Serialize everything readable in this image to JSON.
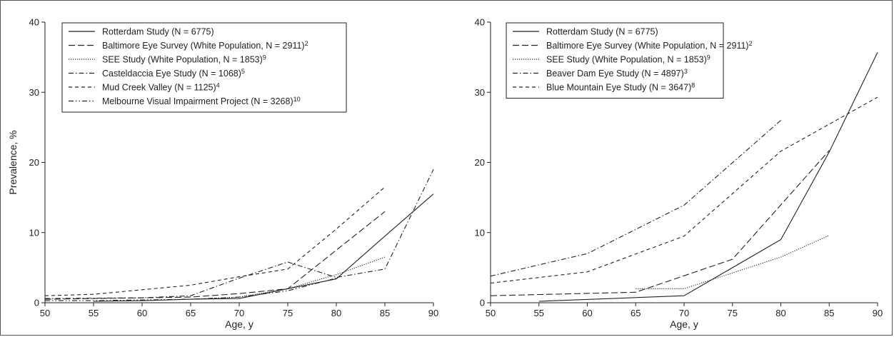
{
  "chart_data": [
    {
      "type": "line",
      "xlabel": "Age, y",
      "ylabel": "Prevalence, %",
      "xlim": [
        50,
        90
      ],
      "ylim": [
        0,
        40
      ],
      "xticks": [
        "50",
        "55",
        "60",
        "65",
        "70",
        "75",
        "80",
        "85",
        "90"
      ],
      "yticks": [
        "0",
        "10",
        "20",
        "30",
        "40"
      ],
      "legend_position": "top-left",
      "series": [
        {
          "name": "Rotterdam Study (N = 6775)",
          "sup": "",
          "dash": "solid",
          "x": [
            55,
            60,
            65,
            70,
            75,
            80,
            85,
            90
          ],
          "y": [
            0.2,
            0.3,
            0.5,
            0.6,
            2.0,
            3.4,
            9.5,
            15.5
          ]
        },
        {
          "name": "Baltimore Eye Survey (White Population, N = 2911)",
          "sup": "2",
          "dash": "longdash",
          "x": [
            50,
            65,
            70,
            75,
            80,
            85
          ],
          "y": [
            0.5,
            0.8,
            1.3,
            2.0,
            7.5,
            13.0
          ]
        },
        {
          "name": "SEE Study (White Population, N = 1853)",
          "sup": "9",
          "dash": "dotted",
          "x": [
            65,
            70,
            75,
            80,
            85
          ],
          "y": [
            0.5,
            0.8,
            2.0,
            4.0,
            6.5
          ]
        },
        {
          "name": "Casteldaccia Eye Study (N = 1068)",
          "sup": "5",
          "dash": "dashdot",
          "x": [
            50,
            60,
            65,
            70,
            75,
            80,
            85,
            90
          ],
          "y": [
            0.6,
            0.7,
            1.0,
            3.5,
            5.8,
            3.6,
            4.8,
            19.0
          ]
        },
        {
          "name": "Mud Creek Valley (N = 1125)",
          "sup": "4",
          "dash": "dashed",
          "x": [
            50,
            55,
            65,
            70,
            75,
            80,
            85
          ],
          "y": [
            1.0,
            1.2,
            2.5,
            3.7,
            4.8,
            10.5,
            16.5
          ]
        },
        {
          "name": "Melbourne Visual Impairment Project (N = 3268)",
          "sup": "10",
          "dash": "dashdotdot",
          "x": [
            50,
            55,
            65,
            70,
            75,
            80
          ],
          "y": [
            0.3,
            0.3,
            0.5,
            0.8,
            1.7,
            3.5
          ]
        }
      ]
    },
    {
      "type": "line",
      "xlabel": "Age, y",
      "ylabel": "",
      "xlim": [
        50,
        90
      ],
      "ylim": [
        0,
        40
      ],
      "xticks": [
        "50",
        "55",
        "60",
        "65",
        "70",
        "75",
        "80",
        "85",
        "90"
      ],
      "yticks": [
        "0",
        "10",
        "20",
        "30",
        "40"
      ],
      "legend_position": "top-left",
      "series": [
        {
          "name": "Rotterdam Study (N = 6775)",
          "sup": "",
          "dash": "solid",
          "x": [
            55,
            70,
            80,
            85,
            90
          ],
          "y": [
            0.2,
            1.0,
            9.0,
            21.5,
            35.7
          ]
        },
        {
          "name": "Baltimore Eye Survey (White Population, N = 2911)",
          "sup": "2",
          "dash": "longdash",
          "x": [
            50,
            65,
            75,
            85
          ],
          "y": [
            1.0,
            1.5,
            6.2,
            21.7
          ]
        },
        {
          "name": "SEE Study (White Population, N = 1853)",
          "sup": "9",
          "dash": "dotted",
          "x": [
            65,
            70,
            80,
            85
          ],
          "y": [
            2.0,
            2.0,
            6.5,
            9.6
          ]
        },
        {
          "name": "Beaver Dam Eye Study (N = 4897)",
          "sup": "3",
          "dash": "dashdot",
          "x": [
            50,
            60,
            70,
            80
          ],
          "y": [
            3.8,
            7.0,
            13.9,
            26.0
          ]
        },
        {
          "name": "Blue Mountain Eye Study (N = 3647)",
          "sup": "8",
          "dash": "dashed",
          "x": [
            50,
            60,
            70,
            80,
            90
          ],
          "y": [
            2.8,
            4.4,
            9.5,
            21.6,
            29.3
          ]
        }
      ]
    }
  ]
}
